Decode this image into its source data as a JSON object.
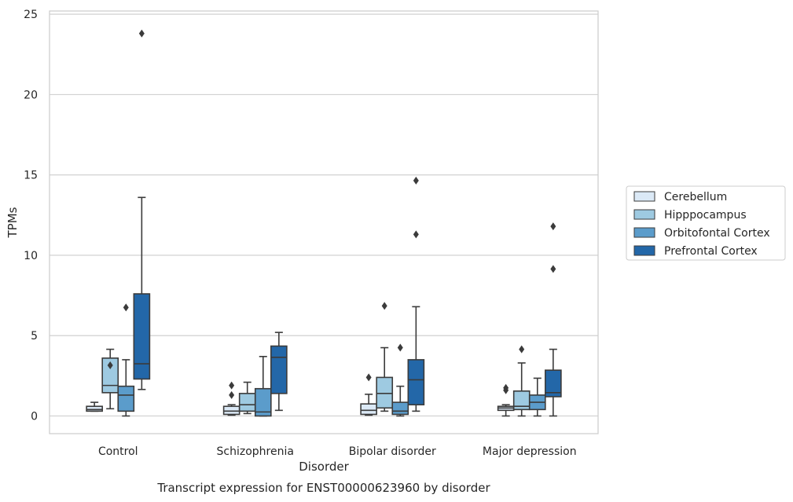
{
  "caption": "Transcript expression for ENST00000623960 by disorder",
  "chart_data": {
    "type": "box",
    "xlabel": "Disorder",
    "ylabel": "TPMs",
    "ylim": [
      -1.1,
      25.2
    ],
    "yticks": [
      0,
      5,
      10,
      15,
      20,
      25
    ],
    "grid": true,
    "legend_position": "right",
    "categories": [
      "Control",
      "Schizophrenia",
      "Bipolar disorder",
      "Major depression"
    ],
    "series": [
      {
        "name": "Cerebellum",
        "color": "#dbe9f6",
        "boxes": [
          {
            "q1": 0.3,
            "median": 0.4,
            "q3": 0.6,
            "whislo": 0.3,
            "whishi": 0.85,
            "outliers": []
          },
          {
            "q1": 0.1,
            "median": 0.3,
            "q3": 0.6,
            "whislo": 0.05,
            "whishi": 0.7,
            "outliers": [
              1.3,
              1.9
            ]
          },
          {
            "q1": 0.1,
            "median": 0.35,
            "q3": 0.75,
            "whislo": 0.05,
            "whishi": 1.35,
            "outliers": [
              2.4
            ]
          },
          {
            "q1": 0.35,
            "median": 0.5,
            "q3": 0.6,
            "whislo": 0.0,
            "whishi": 0.7,
            "outliers": [
              1.6,
              1.75
            ]
          }
        ]
      },
      {
        "name": "Hipppocampus",
        "color": "#9ecae1",
        "boxes": [
          {
            "q1": 1.45,
            "median": 1.9,
            "q3": 3.6,
            "whislo": 0.45,
            "whishi": 4.15,
            "outliers": [
              3.15
            ]
          },
          {
            "q1": 0.3,
            "median": 0.7,
            "q3": 1.4,
            "whislo": 0.15,
            "whishi": 2.1,
            "outliers": []
          },
          {
            "q1": 0.5,
            "median": 1.4,
            "q3": 2.4,
            "whislo": 0.3,
            "whishi": 4.25,
            "outliers": [
              6.85
            ]
          },
          {
            "q1": 0.4,
            "median": 0.6,
            "q3": 1.55,
            "whislo": 0.0,
            "whishi": 3.3,
            "outliers": [
              4.15
            ]
          }
        ]
      },
      {
        "name": "Orbitofontal Cortex",
        "color": "#5b9ccb",
        "boxes": [
          {
            "q1": 0.3,
            "median": 1.3,
            "q3": 1.85,
            "whislo": 0.0,
            "whishi": 3.5,
            "outliers": [
              6.75
            ]
          },
          {
            "q1": 0.0,
            "median": 0.25,
            "q3": 1.7,
            "whislo": 0.0,
            "whishi": 3.7,
            "outliers": []
          },
          {
            "q1": 0.1,
            "median": 0.3,
            "q3": 0.85,
            "whislo": 0.0,
            "whishi": 1.85,
            "outliers": [
              4.25
            ]
          },
          {
            "q1": 0.4,
            "median": 0.85,
            "q3": 1.3,
            "whislo": 0.0,
            "whishi": 2.35,
            "outliers": []
          }
        ]
      },
      {
        "name": "Prefrontal Cortex",
        "color": "#2367a8",
        "boxes": [
          {
            "q1": 2.3,
            "median": 3.25,
            "q3": 7.6,
            "whislo": 1.65,
            "whishi": 13.6,
            "outliers": [
              23.8
            ]
          },
          {
            "q1": 1.4,
            "median": 3.65,
            "q3": 4.35,
            "whislo": 0.35,
            "whishi": 5.2,
            "outliers": []
          },
          {
            "q1": 0.7,
            "median": 2.25,
            "q3": 3.5,
            "whislo": 0.3,
            "whishi": 6.8,
            "outliers": [
              11.3,
              14.65
            ]
          },
          {
            "q1": 1.2,
            "median": 1.45,
            "q3": 2.85,
            "whislo": 0.0,
            "whishi": 4.15,
            "outliers": [
              9.15,
              11.8
            ]
          }
        ]
      }
    ]
  }
}
